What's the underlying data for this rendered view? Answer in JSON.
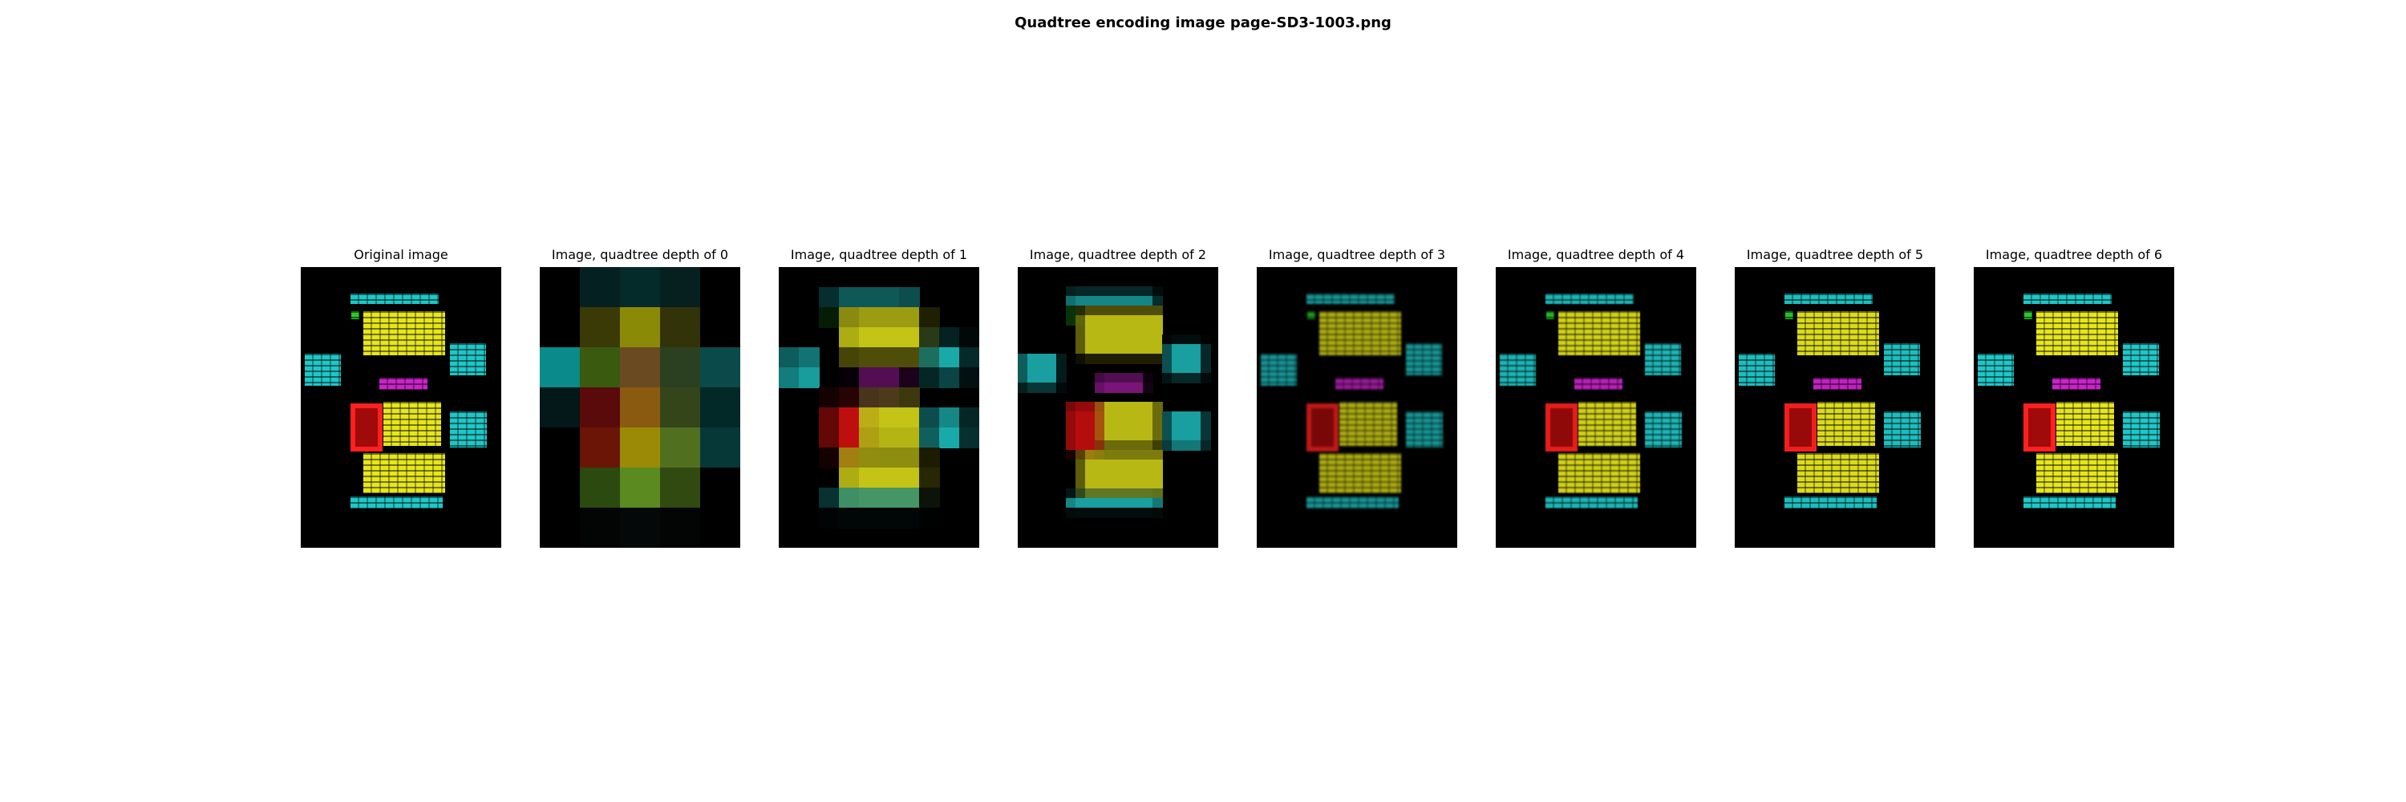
{
  "figure": {
    "title": "Quadtree encoding image page-SD3-1003.png"
  },
  "panels": [
    {
      "title": "Original image",
      "depth": null
    },
    {
      "title": "Image, quadtree depth of 0",
      "depth": 0
    },
    {
      "title": "Image, quadtree depth of 1",
      "depth": 1
    },
    {
      "title": "Image, quadtree depth of 2",
      "depth": 2
    },
    {
      "title": "Image, quadtree depth of 3",
      "depth": 3
    },
    {
      "title": "Image, quadtree depth of 4",
      "depth": 4
    },
    {
      "title": "Image, quadtree depth of 5",
      "depth": 5
    },
    {
      "title": "Image, quadtree depth of 6",
      "depth": 6
    }
  ],
  "colors": {
    "background": "#000000",
    "text_block": "#1fc7c7",
    "paragraph": "#e6e61a",
    "heading": "#cc22cc",
    "figure": "#e01010",
    "list_marker": "#22cc22"
  },
  "depth0_palette": [
    [
      "#000000",
      "#052020",
      "#052a2a",
      "#062020",
      "#000000"
    ],
    [
      "#000000",
      "#3a3a06",
      "#8a8a06",
      "#33330a",
      "#000000"
    ],
    [
      "#0a8a8a",
      "#3a5a10",
      "#6a4a20",
      "#2a4020",
      "#0a4a4a"
    ],
    [
      "#031818",
      "#5a0a0a",
      "#8a5a10",
      "#35451a",
      "#032828"
    ],
    [
      "#000000",
      "#6a1505",
      "#9a8a06",
      "#507020",
      "#063838"
    ],
    [
      "#000000",
      "#2a4a10",
      "#5a8a20",
      "#304a10",
      "#000000"
    ],
    [
      "#000000",
      "#030505",
      "#050808",
      "#030505",
      "#000000"
    ]
  ]
}
